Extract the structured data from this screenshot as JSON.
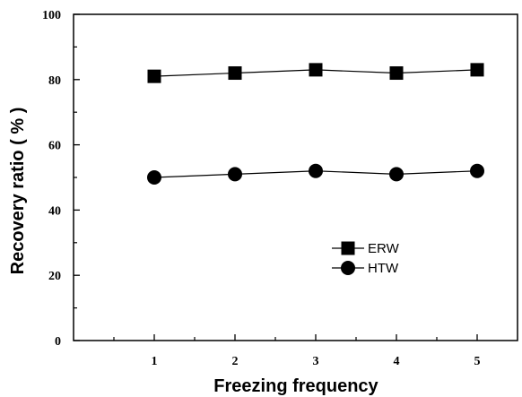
{
  "chart_data": {
    "type": "line",
    "title": "",
    "xlabel": "Freezing  frequency",
    "ylabel": "Recovery ratio ( % )",
    "x": [
      1,
      2,
      3,
      4,
      5
    ],
    "xlim": [
      0,
      5.5
    ],
    "ylim": [
      0,
      100
    ],
    "x_ticks": [
      "1",
      "2",
      "3",
      "4",
      "5"
    ],
    "y_ticks": [
      "0",
      "20",
      "40",
      "60",
      "80",
      "100"
    ],
    "grid": false,
    "legend_position": "lower-right inside plot",
    "series": [
      {
        "name": "ERW",
        "marker": "square",
        "color": "#000000",
        "values": [
          81,
          82,
          83,
          82,
          83
        ]
      },
      {
        "name": "HTW",
        "marker": "circle",
        "color": "#000000",
        "values": [
          50,
          51,
          52,
          51,
          52
        ]
      }
    ]
  }
}
